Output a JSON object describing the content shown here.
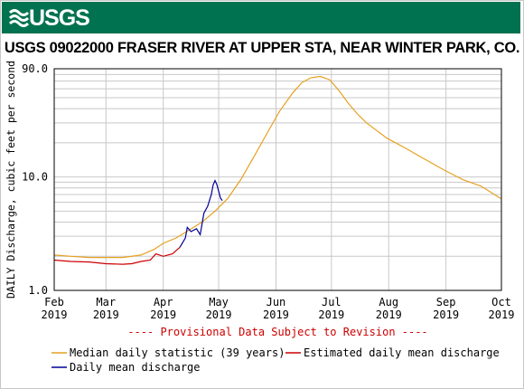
{
  "header": {
    "agency": "USGS",
    "banner_color": "#00724f"
  },
  "chart_data": {
    "type": "line",
    "title": "USGS 09022000 FRASER RIVER AT UPPER STA, NEAR WINTER PARK, CO.",
    "ylabel": "DAILY Discharge, cubic feet per second",
    "yscale": "log",
    "ylim": [
      1.0,
      90.0
    ],
    "y_ticks": [
      {
        "value": 1.0,
        "label": "1.0"
      },
      {
        "value": 10.0,
        "label": "10.0"
      },
      {
        "value": 90.0,
        "label": "90.0"
      }
    ],
    "xlim": [
      "2019-02-01",
      "2019-10-01"
    ],
    "x_ticks": [
      {
        "date": "2019-02-01",
        "label": "Feb",
        "year": "2019"
      },
      {
        "date": "2019-03-01",
        "label": "Mar",
        "year": "2019"
      },
      {
        "date": "2019-04-01",
        "label": "Apr",
        "year": "2019"
      },
      {
        "date": "2019-05-01",
        "label": "May",
        "year": "2019"
      },
      {
        "date": "2019-06-01",
        "label": "Jun",
        "year": "2019"
      },
      {
        "date": "2019-07-01",
        "label": "Jul",
        "year": "2019"
      },
      {
        "date": "2019-08-01",
        "label": "Aug",
        "year": "2019"
      },
      {
        "date": "2019-09-01",
        "label": "Sep",
        "year": "2019"
      },
      {
        "date": "2019-10-01",
        "label": "Oct",
        "year": "2019"
      }
    ],
    "grid": true,
    "legend_position": "bottom",
    "provisional_note": "---- Provisional Data Subject to Revision ----",
    "series": [
      {
        "name": "Median daily statistic (39 years)",
        "color": "#e6a020",
        "points": [
          [
            "2019-02-01",
            2.05
          ],
          [
            "2019-02-10",
            2.0
          ],
          [
            "2019-02-20",
            1.95
          ],
          [
            "2019-03-01",
            1.95
          ],
          [
            "2019-03-10",
            1.95
          ],
          [
            "2019-03-20",
            2.05
          ],
          [
            "2019-03-27",
            2.3
          ],
          [
            "2019-04-01",
            2.6
          ],
          [
            "2019-04-08",
            2.9
          ],
          [
            "2019-04-15",
            3.4
          ],
          [
            "2019-04-22",
            4.0
          ],
          [
            "2019-04-29",
            5.0
          ],
          [
            "2019-05-06",
            6.5
          ],
          [
            "2019-05-13",
            9.5
          ],
          [
            "2019-05-20",
            15
          ],
          [
            "2019-05-27",
            24
          ],
          [
            "2019-06-03",
            38
          ],
          [
            "2019-06-10",
            55
          ],
          [
            "2019-06-15",
            68
          ],
          [
            "2019-06-20",
            75
          ],
          [
            "2019-06-25",
            77
          ],
          [
            "2019-06-30",
            72
          ],
          [
            "2019-07-05",
            58
          ],
          [
            "2019-07-10",
            45
          ],
          [
            "2019-07-15",
            36
          ],
          [
            "2019-07-20",
            30
          ],
          [
            "2019-07-31",
            22
          ],
          [
            "2019-08-10",
            18
          ],
          [
            "2019-08-20",
            14.5
          ],
          [
            "2019-08-31",
            11.5
          ],
          [
            "2019-09-10",
            9.5
          ],
          [
            "2019-09-20",
            8.3
          ],
          [
            "2019-10-01",
            6.4
          ]
        ]
      },
      {
        "name": "Estimated daily mean discharge",
        "color": "#cc0000",
        "points": [
          [
            "2019-02-01",
            1.85
          ],
          [
            "2019-02-10",
            1.8
          ],
          [
            "2019-02-20",
            1.78
          ],
          [
            "2019-03-01",
            1.72
          ],
          [
            "2019-03-10",
            1.7
          ],
          [
            "2019-03-15",
            1.72
          ],
          [
            "2019-03-20",
            1.8
          ],
          [
            "2019-03-25",
            1.85
          ],
          [
            "2019-03-28",
            2.1
          ],
          [
            "2019-04-01",
            2.0
          ],
          [
            "2019-04-06",
            2.1
          ],
          [
            "2019-04-10",
            2.4
          ]
        ]
      },
      {
        "name": "Daily mean discharge",
        "color": "#000099",
        "points": [
          [
            "2019-04-10",
            2.4
          ],
          [
            "2019-04-13",
            2.9
          ],
          [
            "2019-04-14",
            3.6
          ],
          [
            "2019-04-16",
            3.3
          ],
          [
            "2019-04-19",
            3.5
          ],
          [
            "2019-04-21",
            3.1
          ],
          [
            "2019-04-23",
            4.8
          ],
          [
            "2019-04-25",
            5.5
          ],
          [
            "2019-04-27",
            7.0
          ],
          [
            "2019-04-28",
            8.5
          ],
          [
            "2019-04-29",
            9.3
          ],
          [
            "2019-04-30",
            8.6
          ],
          [
            "2019-05-01",
            7.5
          ],
          [
            "2019-05-02",
            6.5
          ],
          [
            "2019-05-03",
            6.2
          ]
        ]
      }
    ]
  }
}
